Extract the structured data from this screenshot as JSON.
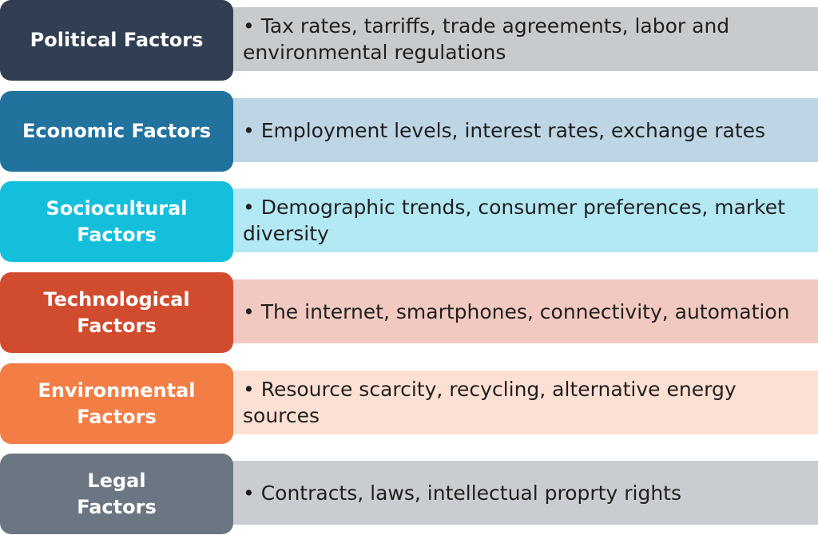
{
  "rows": [
    {
      "label": "Political Factors",
      "text": "• Tax rates, tarriffs, trade agreements, labor and\n   environmental regulations",
      "label_color": "#323f52",
      "bar_color": "#c8cbce"
    },
    {
      "label": "Economic Factors",
      "text": "• Employment levels, interest rates, exchange rates",
      "label_color": "#22729e",
      "bar_color": "#bdd5e4"
    },
    {
      "label": "Sociocultural\nFactors",
      "text": "• Demographic trends, consumer preferences, market\n  diversity",
      "label_color": "#14bfdc",
      "bar_color": "#b3e9f4"
    },
    {
      "label": "Technological\nFactors",
      "text": "• The internet, smartphones, connectivity, automation",
      "label_color": "#d14b2f",
      "bar_color": "#f2c9c0"
    },
    {
      "label": "Environmental\nFactors",
      "text": "• Resource scarcity, recycling, alternative energy\n   sources",
      "label_color": "#f27e46",
      "bar_color": "#fde0d4"
    },
    {
      "label": "Legal\nFactors",
      "text": "• Contracts, laws, intellectual proprty rights",
      "label_color": "#6b7682",
      "bar_color": "#c9cdd1"
    }
  ]
}
